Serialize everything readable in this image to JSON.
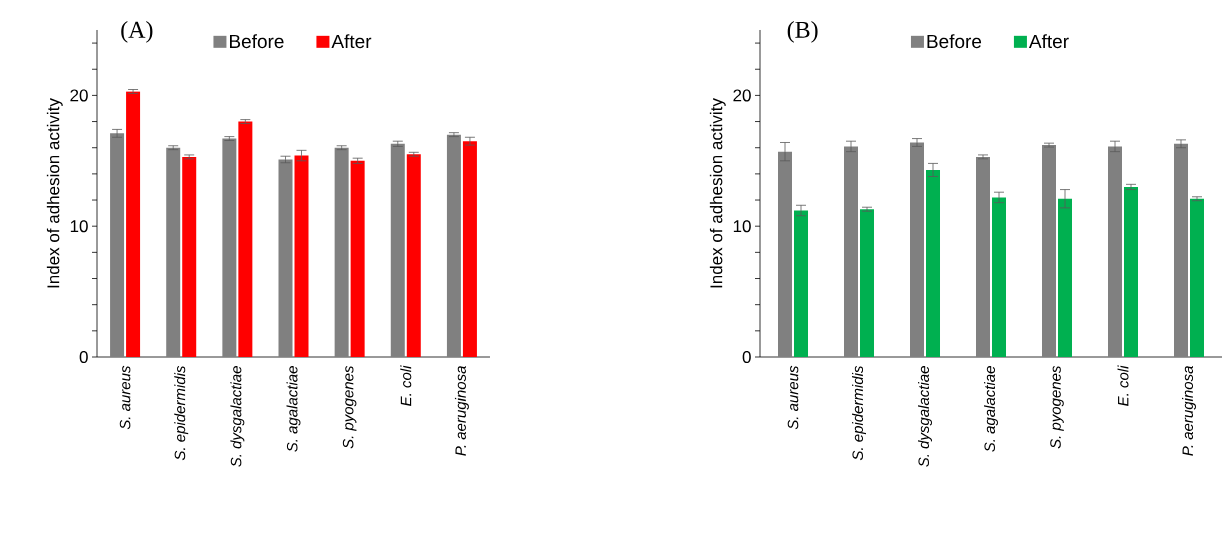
{
  "chart_data": [
    {
      "type": "bar",
      "title": "(A)",
      "ylabel": "Index of adhesion activity",
      "categories": [
        "S. aureus",
        "S. epidermidis",
        "S. dysgalactiae",
        "S. agalactiae",
        "S. pyogenes",
        "E. coli",
        "P. aeruginosa"
      ],
      "series": [
        {
          "name": "Before",
          "color": "#808080",
          "values": [
            17.1,
            16.0,
            16.7,
            15.1,
            16.0,
            16.3,
            17.0
          ],
          "errors": [
            0.3,
            0.15,
            0.15,
            0.25,
            0.15,
            0.2,
            0.15
          ]
        },
        {
          "name": "After",
          "color": "#ff0000",
          "values": [
            20.3,
            15.3,
            18.0,
            15.4,
            15.0,
            15.5,
            16.5
          ],
          "errors": [
            0.15,
            0.15,
            0.15,
            0.4,
            0.2,
            0.15,
            0.3
          ]
        }
      ],
      "ylim": [
        0,
        25
      ],
      "yticks": [
        0,
        {
          "value": 2,
          "label": null
        },
        {
          "value": 4,
          "label": null
        },
        {
          "value": 6,
          "label": null
        },
        {
          "value": 8,
          "label": null
        },
        10,
        {
          "value": 12,
          "label": null
        },
        {
          "value": 14,
          "label": null
        },
        {
          "value": 16,
          "label": null
        },
        {
          "value": 18,
          "label": null
        },
        20,
        {
          "value": 22,
          "label": null
        },
        {
          "value": 24,
          "label": null
        }
      ],
      "legend": "top"
    },
    {
      "type": "bar",
      "title": "(B)",
      "ylabel": "Index of adhesion activity",
      "categories": [
        "S. aureus",
        "S. epidermidis",
        "S. dysgalactiae",
        "S. agalactiae",
        "S. pyogenes",
        "E. coli",
        "P. aeruginosa"
      ],
      "series": [
        {
          "name": "Before",
          "color": "#808080",
          "values": [
            15.7,
            16.1,
            16.4,
            15.3,
            16.2,
            16.1,
            16.3
          ],
          "errors": [
            0.7,
            0.4,
            0.3,
            0.15,
            0.15,
            0.4,
            0.3
          ]
        },
        {
          "name": "After",
          "color": "#00b050",
          "values": [
            11.2,
            11.3,
            14.3,
            12.2,
            12.1,
            13.0,
            12.1
          ],
          "errors": [
            0.4,
            0.15,
            0.5,
            0.4,
            0.7,
            0.2,
            0.15
          ]
        }
      ],
      "ylim": [
        0,
        25
      ],
      "yticks": [
        0,
        {
          "value": 2,
          "label": null
        },
        {
          "value": 4,
          "label": null
        },
        {
          "value": 6,
          "label": null
        },
        {
          "value": 8,
          "label": null
        },
        10,
        {
          "value": 12,
          "label": null
        },
        {
          "value": 14,
          "label": null
        },
        {
          "value": 16,
          "label": null
        },
        {
          "value": 18,
          "label": null
        },
        20,
        {
          "value": 22,
          "label": null
        },
        {
          "value": 24,
          "label": null
        }
      ],
      "legend": "top"
    }
  ]
}
